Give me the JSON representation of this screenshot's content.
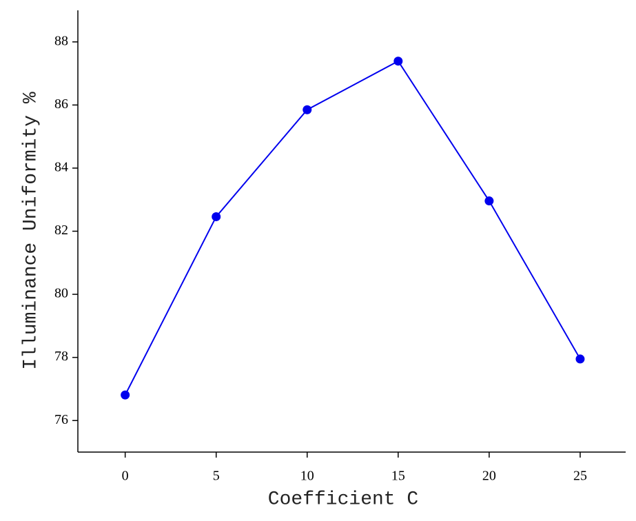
{
  "chart_data": {
    "type": "line",
    "x_label": "Coefficient C",
    "y_label": "Illuminance Uniformity %",
    "x": [
      0,
      5,
      10,
      15,
      20,
      25
    ],
    "series": [
      {
        "name": "Illuminance Uniformity",
        "color": "#0000ee",
        "values": [
          76.81,
          82.46,
          85.85,
          87.39,
          82.96,
          77.95
        ]
      }
    ],
    "xlim": [
      -2.6,
      27.5
    ],
    "ylim": [
      75,
      89
    ],
    "xticks": [
      0,
      5,
      10,
      15,
      20,
      25
    ],
    "yticks": [
      76,
      78,
      80,
      82,
      84,
      86,
      88
    ],
    "grid": false
  }
}
